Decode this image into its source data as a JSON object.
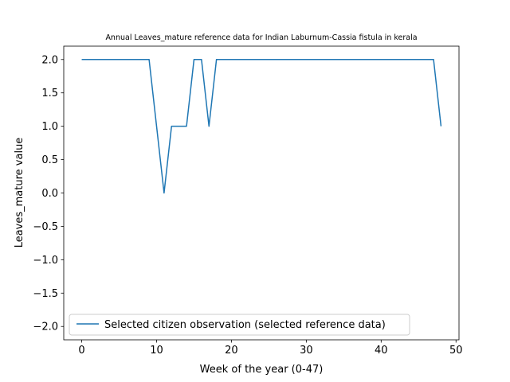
{
  "chart_data": {
    "type": "line",
    "title": "Annual Leaves_mature reference data for Indian Laburnum-Cassia fistula in kerala",
    "xlabel": "Week of the year (0-47)",
    "ylabel": "Leaves_mature value",
    "xlim": [
      -2.4,
      50.4
    ],
    "ylim": [
      -2.2,
      2.2
    ],
    "x_ticks": [
      0,
      10,
      20,
      30,
      40,
      50
    ],
    "y_ticks": [
      -2.0,
      -1.5,
      -1.0,
      -0.5,
      0.0,
      0.5,
      1.0,
      1.5,
      2.0
    ],
    "x_tick_labels": [
      "0",
      "10",
      "20",
      "30",
      "40",
      "50"
    ],
    "y_tick_labels": [
      "−2.0",
      "−1.5",
      "−1.0",
      "−0.5",
      "0.0",
      "0.5",
      "1.0",
      "1.5",
      "2.0"
    ],
    "grid": false,
    "legend_position": "lower-left",
    "series": [
      {
        "name": "Selected citizen observation (selected reference data)",
        "color": "#1f77b4",
        "x": [
          0,
          1,
          2,
          3,
          4,
          5,
          6,
          7,
          8,
          9,
          10,
          11,
          12,
          13,
          14,
          15,
          16,
          17,
          18,
          19,
          20,
          21,
          22,
          23,
          24,
          25,
          26,
          27,
          28,
          29,
          30,
          31,
          32,
          33,
          34,
          35,
          36,
          37,
          38,
          39,
          40,
          41,
          42,
          43,
          44,
          45,
          46,
          47,
          48
        ],
        "y": [
          2,
          2,
          2,
          2,
          2,
          2,
          2,
          2,
          2,
          2,
          1,
          0,
          1,
          1,
          1,
          2,
          2,
          1,
          2,
          2,
          2,
          2,
          2,
          2,
          2,
          2,
          2,
          2,
          2,
          2,
          2,
          2,
          2,
          2,
          2,
          2,
          2,
          2,
          2,
          2,
          2,
          2,
          2,
          2,
          2,
          2,
          2,
          2,
          1
        ]
      }
    ]
  }
}
